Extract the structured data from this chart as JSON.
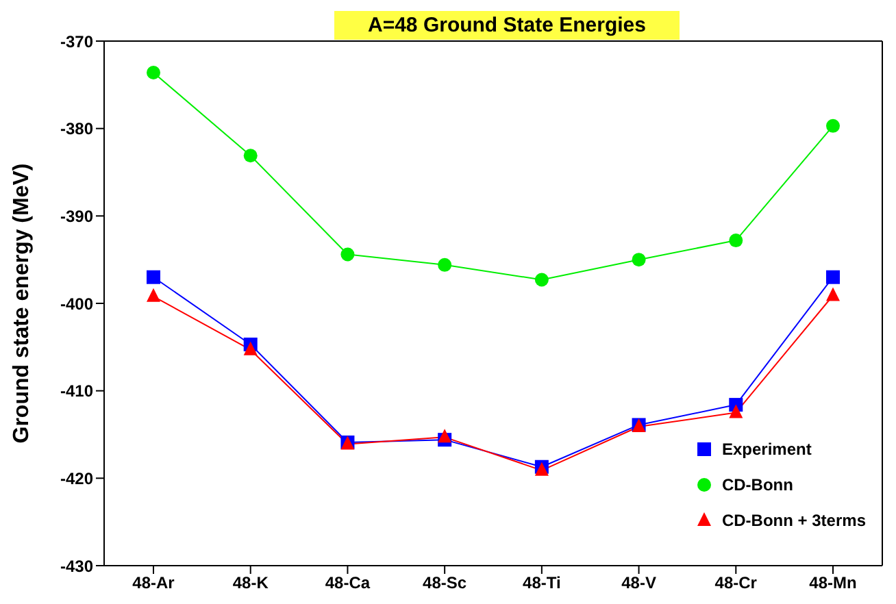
{
  "chart_data": {
    "type": "line",
    "title": "A=48 Ground  State Energies",
    "ylabel": "Ground state energy (MeV)",
    "categories": [
      "48-Ar",
      "48-K",
      "48-Ca",
      "48-Sc",
      "48-Ti",
      "48-V",
      "48-Cr",
      "48-Mn"
    ],
    "series": [
      {
        "name": "Experiment",
        "color": "#0000ff",
        "marker": "square",
        "values": [
          -397.0,
          -404.7,
          -415.9,
          -415.6,
          -418.7,
          -413.9,
          -411.6,
          -397.0
        ]
      },
      {
        "name": "CD-Bonn",
        "color": "#00ee00",
        "marker": "circle",
        "values": [
          -373.6,
          -383.1,
          -394.4,
          -395.6,
          -397.3,
          -395.0,
          -392.8,
          -379.7
        ]
      },
      {
        "name": "CD-Bonn + 3terms",
        "color": "#ff0000",
        "marker": "triangle",
        "values": [
          -399.2,
          -405.3,
          -416.1,
          -415.3,
          -419.1,
          -414.1,
          -412.5,
          -399.1
        ]
      }
    ],
    "ylim": [
      -430,
      -370
    ],
    "yticks": [
      -430,
      -420,
      -410,
      -400,
      -390,
      -380,
      -370
    ],
    "legend": "bottom right"
  }
}
